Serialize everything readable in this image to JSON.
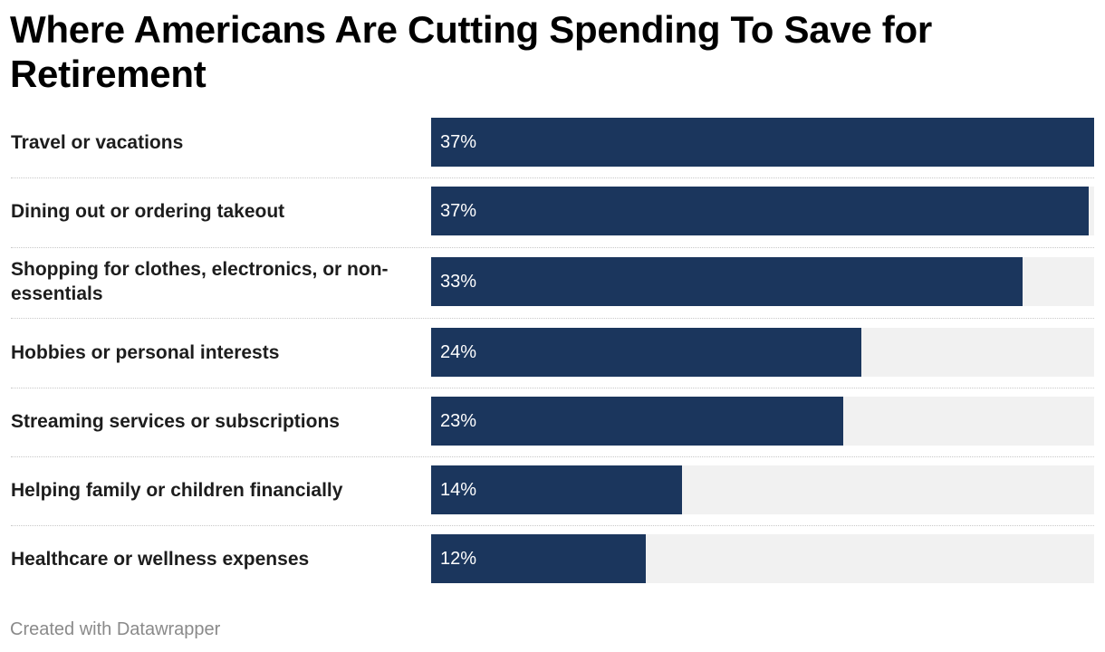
{
  "chart_data": {
    "type": "bar",
    "orientation": "horizontal",
    "title": "Where Americans Are Cutting Spending To Save for Retirement",
    "categories": [
      "Travel or vacations",
      "Dining out or ordering takeout",
      "Shopping for clothes, electronics, or non-essentials",
      "Hobbies or personal interests",
      "Streaming services or subscriptions",
      "Helping family or children financially",
      "Healthcare or wellness expenses"
    ],
    "values": [
      37,
      37,
      33,
      24,
      23,
      14,
      12
    ],
    "value_labels": [
      "37%",
      "37%",
      "33%",
      "24%",
      "23%",
      "14%",
      "12%"
    ],
    "unit": "%",
    "xlim": [
      0,
      37
    ],
    "bar_color": "#1b365d",
    "track_color": "#f1f1f1",
    "legend": "none",
    "grid": false
  },
  "footer": {
    "credit": "Created with Datawrapper"
  }
}
